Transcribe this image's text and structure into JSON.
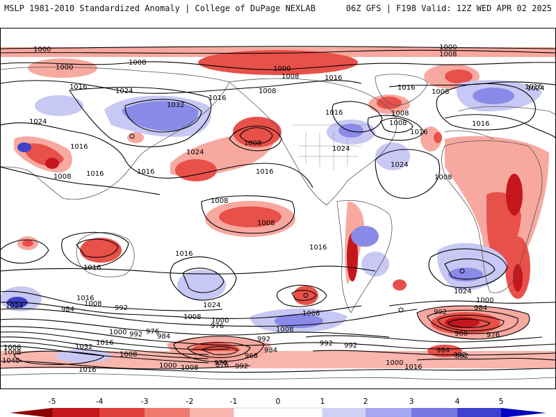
{
  "header": {
    "left": "MSLP 1981-2010 Standardized Anomaly | College of DuPage NEXLAB",
    "right": "06Z GFS | F198 Valid: 12Z WED APR 02 2025"
  },
  "colors": {
    "strong_neg": "#c4161c",
    "mid_neg": "#e8504a",
    "weak_neg": "#f7a9a0",
    "weak_pos": "#c8c8f4",
    "mid_pos": "#8a8ae8",
    "strong_pos": "#4040c8",
    "land_outline": "#555555",
    "isobar": "#000000"
  },
  "colorbar": {
    "ticks": [
      "-5",
      "-4",
      "-3",
      "-2",
      "-1",
      "0",
      "1",
      "2",
      "3",
      "4",
      "5"
    ],
    "colors": [
      "#8b0000",
      "#c4161c",
      "#e0403a",
      "#f07a70",
      "#f7b5ad",
      "#ffffff",
      "#ffffff",
      "#d0d0f6",
      "#a6a6ee",
      "#7777e2",
      "#3f3fcf",
      "#0000c0"
    ]
  },
  "isobar_labels": [
    "1000",
    "1000",
    "1008",
    "1008",
    "1000",
    "1016",
    "1024",
    "1032",
    "1016",
    "1008",
    "1016",
    "1024",
    "1016",
    "1024",
    "1016",
    "1008",
    "1016",
    "1008",
    "1016",
    "1008",
    "1000",
    "1016",
    "1008",
    "1008",
    "1008",
    "1024",
    "1016",
    "1024",
    "1008",
    "1008",
    "1008",
    "1016",
    "1016",
    "1016",
    "1024",
    "1016",
    "1016",
    "1024",
    "992",
    "984",
    "1008",
    "1000",
    "1024",
    "1024",
    "1016",
    "1008",
    "1016",
    "1000",
    "984",
    "1008",
    "1008",
    "992",
    "984",
    "976",
    "1000",
    "976",
    "992",
    "1008",
    "1032",
    "1016",
    "976",
    "968",
    "984",
    "992",
    "992",
    "992",
    "960",
    "976",
    "984",
    "992",
    "1040",
    "1016",
    "1008",
    "1000",
    "976",
    "1000",
    "1016",
    "992",
    "1008",
    "992",
    "1008"
  ],
  "pressure_centers": [
    {
      "type": "low",
      "color": "strong_neg"
    },
    {
      "type": "low",
      "color": "strong_neg"
    },
    {
      "type": "high",
      "color": "mid_pos"
    },
    {
      "type": "low",
      "color": "strong_neg"
    }
  ]
}
